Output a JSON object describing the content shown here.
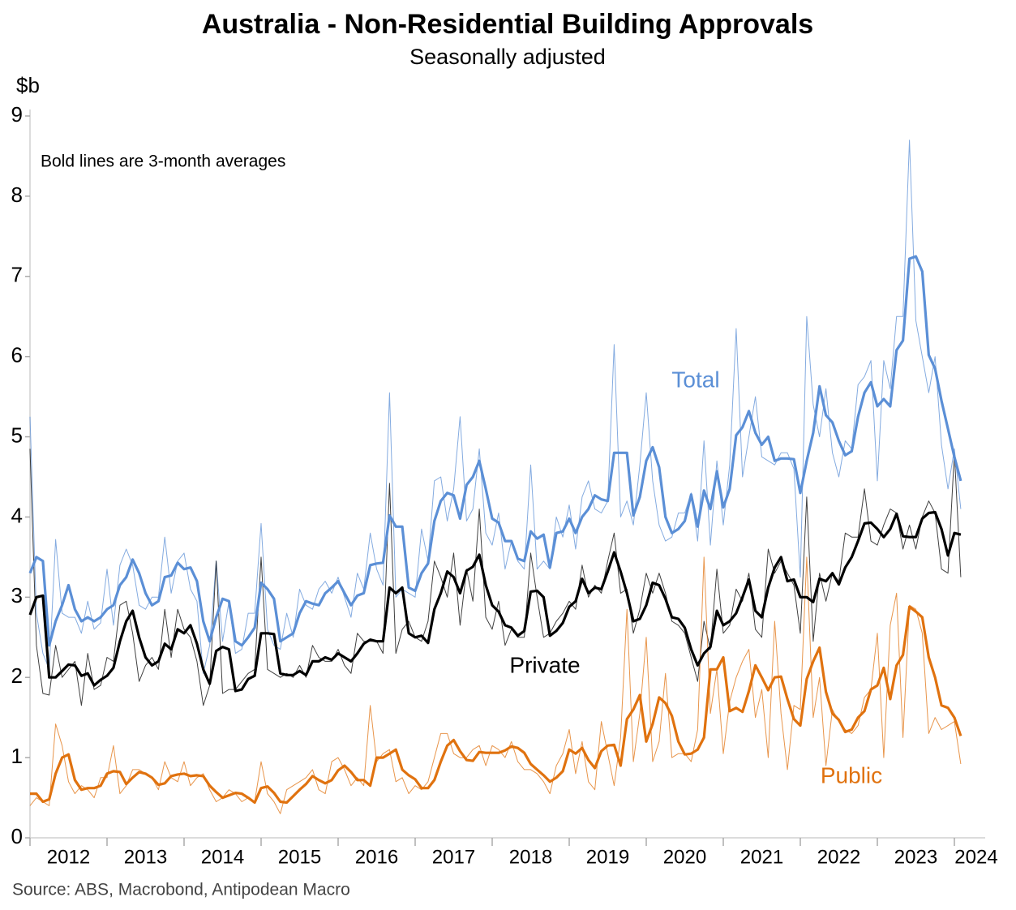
{
  "chart_data": {
    "type": "line",
    "title": "Australia - Non-Residential Building Approvals",
    "subtitle": "Seasonally adjusted",
    "y_label": "$b",
    "annotation": "Bold lines are 3-month averages",
    "source": "Source: ABS, Macrobond, Antipodean Macro",
    "xlim": [
      2012,
      2024.4
    ],
    "xticks": [
      2012,
      2013,
      2014,
      2015,
      2016,
      2017,
      2018,
      2019,
      2020,
      2021,
      2022,
      2023,
      2024
    ],
    "ylim": [
      0,
      9
    ],
    "yticks": [
      0,
      1,
      2,
      3,
      4,
      5,
      6,
      7,
      8,
      9
    ],
    "x": [
      2012.0,
      2012.083,
      2012.167,
      2012.25,
      2012.333,
      2012.417,
      2012.5,
      2012.583,
      2012.667,
      2012.75,
      2012.833,
      2012.917,
      2013.0,
      2013.083,
      2013.167,
      2013.25,
      2013.333,
      2013.417,
      2013.5,
      2013.583,
      2013.667,
      2013.75,
      2013.833,
      2013.917,
      2014.0,
      2014.083,
      2014.167,
      2014.25,
      2014.333,
      2014.417,
      2014.5,
      2014.583,
      2014.667,
      2014.75,
      2014.833,
      2014.917,
      2015.0,
      2015.083,
      2015.167,
      2015.25,
      2015.333,
      2015.417,
      2015.5,
      2015.583,
      2015.667,
      2015.75,
      2015.833,
      2015.917,
      2016.0,
      2016.083,
      2016.167,
      2016.25,
      2016.333,
      2016.417,
      2016.5,
      2016.583,
      2016.667,
      2016.75,
      2016.833,
      2016.917,
      2017.0,
      2017.083,
      2017.167,
      2017.25,
      2017.333,
      2017.417,
      2017.5,
      2017.583,
      2017.667,
      2017.75,
      2017.833,
      2017.917,
      2018.0,
      2018.083,
      2018.167,
      2018.25,
      2018.333,
      2018.417,
      2018.5,
      2018.583,
      2018.667,
      2018.75,
      2018.833,
      2018.917,
      2019.0,
      2019.083,
      2019.167,
      2019.25,
      2019.333,
      2019.417,
      2019.5,
      2019.583,
      2019.667,
      2019.75,
      2019.833,
      2019.917,
      2020.0,
      2020.083,
      2020.167,
      2020.25,
      2020.333,
      2020.417,
      2020.5,
      2020.583,
      2020.667,
      2020.75,
      2020.833,
      2020.917,
      2021.0,
      2021.083,
      2021.167,
      2021.25,
      2021.333,
      2021.417,
      2021.5,
      2021.583,
      2021.667,
      2021.75,
      2021.833,
      2021.917,
      2022.0,
      2022.083,
      2022.167,
      2022.25,
      2022.333,
      2022.417,
      2022.5,
      2022.583,
      2022.667,
      2022.75,
      2022.833,
      2022.917,
      2023.0,
      2023.083,
      2023.167,
      2023.25,
      2023.333,
      2023.417,
      2023.5,
      2023.583,
      2023.667,
      2023.75,
      2023.833,
      2023.917,
      2024.0,
      2024.083
    ],
    "series": [
      {
        "name": "Total",
        "color": "#5b8fd6",
        "values": [
          5.25,
          2.8,
          2.3,
          2.1,
          3.72,
          2.8,
          2.75,
          2.75,
          2.55,
          2.95,
          2.6,
          2.68,
          3.35,
          2.65,
          3.4,
          3.6,
          3.4,
          2.9,
          2.85,
          3.0,
          3.0,
          3.75,
          3.05,
          3.45,
          3.55,
          3.1,
          2.95,
          2.05,
          2.4,
          3.45,
          2.45,
          2.95,
          2.3,
          2.35,
          2.8,
          2.8,
          3.92,
          2.6,
          2.4,
          2.35,
          2.8,
          2.5,
          3.1,
          2.9,
          2.85,
          3.1,
          3.2,
          3.05,
          3.25,
          3.0,
          2.75,
          3.3,
          3.1,
          3.8,
          3.35,
          3.15,
          5.55,
          3.0,
          3.1,
          3.05,
          3.0,
          3.85,
          3.45,
          4.45,
          4.5,
          3.95,
          4.35,
          5.25,
          3.95,
          4.1,
          4.85,
          3.8,
          3.65,
          4.05,
          3.35,
          3.7,
          3.45,
          3.35,
          4.65,
          3.35,
          3.45,
          3.35,
          4.0,
          3.75,
          4.15,
          3.6,
          4.25,
          4.45,
          4.1,
          4.05,
          4.2,
          6.15,
          4.0,
          4.2,
          3.9,
          4.65,
          5.55,
          4.45,
          3.9,
          3.7,
          3.75,
          4.05,
          4.05,
          4.3,
          3.7,
          4.95,
          3.65,
          4.7,
          3.9,
          4.65,
          6.35,
          4.5,
          5.0,
          5.5,
          4.75,
          4.7,
          4.65,
          4.8,
          4.8,
          4.6,
          3.25,
          6.5,
          5.4,
          5.0,
          5.6,
          4.8,
          4.5,
          4.95,
          4.85,
          5.65,
          5.75,
          5.95,
          4.45,
          5.95,
          5.6,
          6.5,
          6.5,
          8.7,
          6.45,
          6.0,
          5.55,
          6.0,
          4.9,
          4.35,
          4.85,
          4.1
        ],
        "average_values": [
          3.3,
          3.5,
          3.45,
          2.4,
          2.7,
          2.9,
          3.15,
          2.85,
          2.7,
          2.75,
          2.7,
          2.75,
          2.85,
          2.9,
          3.15,
          3.25,
          3.47,
          3.3,
          3.05,
          2.9,
          2.95,
          3.25,
          3.27,
          3.43,
          3.35,
          3.37,
          3.2,
          2.7,
          2.45,
          2.75,
          2.98,
          2.95,
          2.45,
          2.4,
          2.5,
          2.62,
          3.18,
          3.1,
          2.98,
          2.45,
          2.5,
          2.55,
          2.8,
          2.95,
          2.92,
          2.9,
          3.05,
          3.12,
          3.2,
          3.05,
          2.9,
          3.02,
          3.05,
          3.4,
          3.42,
          3.43,
          4.02,
          3.88,
          3.88,
          3.12,
          3.08,
          3.3,
          3.42,
          3.95,
          4.2,
          4.3,
          4.27,
          3.98,
          4.4,
          4.5,
          4.7,
          4.35,
          3.98,
          3.93,
          3.7,
          3.7,
          3.48,
          3.45,
          3.82,
          3.73,
          3.78,
          3.37,
          3.8,
          3.82,
          3.98,
          3.8,
          4.0,
          4.1,
          4.27,
          4.22,
          4.2,
          4.8,
          4.8,
          4.8,
          4.02,
          4.25,
          4.7,
          4.87,
          4.62,
          4.0,
          3.8,
          3.85,
          3.95,
          4.28,
          3.88,
          4.33,
          4.1,
          4.57,
          4.12,
          4.35,
          5.02,
          5.12,
          5.32,
          5.05,
          4.9,
          5.0,
          4.7,
          4.73,
          4.73,
          4.72,
          4.3,
          4.7,
          5.05,
          5.63,
          5.27,
          5.18,
          4.95,
          4.77,
          4.82,
          5.25,
          5.55,
          5.68,
          5.38,
          5.47,
          5.38,
          6.08,
          6.2,
          7.22,
          7.25,
          7.06,
          6.02,
          5.85,
          5.45,
          5.1,
          4.75,
          4.45
        ]
      },
      {
        "name": "Private",
        "color": "#000000",
        "values": [
          4.85,
          2.4,
          1.8,
          1.78,
          2.4,
          2.0,
          2.1,
          2.2,
          1.65,
          2.3,
          1.85,
          1.9,
          2.25,
          2.2,
          2.9,
          2.95,
          2.55,
          1.95,
          2.15,
          2.25,
          2.1,
          2.85,
          2.25,
          2.85,
          2.6,
          2.5,
          2.2,
          1.65,
          1.9,
          3.45,
          1.8,
          1.85,
          1.85,
          1.95,
          2.05,
          2.1,
          3.5,
          2.1,
          2.05,
          2.0,
          2.05,
          2.0,
          2.15,
          2.0,
          2.4,
          2.25,
          2.2,
          2.2,
          2.35,
          2.15,
          2.05,
          2.55,
          2.45,
          2.45,
          2.45,
          2.3,
          4.42,
          2.3,
          2.6,
          2.7,
          2.5,
          2.45,
          2.7,
          3.45,
          3.25,
          3.0,
          3.55,
          2.65,
          3.35,
          2.95,
          4.1,
          2.75,
          2.6,
          2.95,
          2.4,
          2.6,
          2.5,
          2.5,
          3.55,
          3.0,
          2.5,
          2.55,
          2.7,
          2.8,
          2.95,
          2.85,
          3.4,
          3.0,
          3.15,
          3.05,
          3.45,
          3.8,
          3.05,
          3.1,
          2.55,
          2.85,
          3.3,
          3.05,
          3.3,
          3.05,
          2.7,
          2.65,
          2.55,
          2.25,
          1.95,
          2.7,
          2.35,
          3.35,
          2.55,
          2.65,
          3.1,
          2.95,
          3.3,
          2.6,
          2.5,
          3.6,
          3.3,
          3.45,
          3.3,
          3.15,
          2.55,
          4.25,
          2.45,
          3.3,
          2.95,
          3.3,
          3.2,
          3.8,
          3.75,
          3.75,
          4.35,
          3.7,
          3.65,
          3.9,
          4.1,
          4.05,
          3.6,
          3.9,
          3.6,
          4.0,
          4.2,
          4.05,
          3.35,
          3.3,
          4.8,
          3.25
        ],
        "average_values": [
          2.78,
          3.0,
          3.02,
          2.0,
          2.0,
          2.08,
          2.16,
          2.15,
          2.02,
          2.05,
          1.9,
          1.97,
          2.02,
          2.12,
          2.45,
          2.7,
          2.83,
          2.5,
          2.25,
          2.15,
          2.2,
          2.42,
          2.35,
          2.6,
          2.55,
          2.65,
          2.42,
          2.1,
          1.92,
          2.33,
          2.38,
          2.35,
          1.83,
          1.85,
          1.98,
          2.02,
          2.55,
          2.55,
          2.54,
          2.05,
          2.03,
          2.03,
          2.08,
          2.03,
          2.2,
          2.2,
          2.25,
          2.22,
          2.3,
          2.25,
          2.2,
          2.3,
          2.42,
          2.47,
          2.45,
          2.45,
          3.12,
          3.05,
          3.12,
          2.55,
          2.5,
          2.52,
          2.43,
          2.85,
          3.05,
          3.32,
          3.25,
          3.05,
          3.33,
          3.38,
          3.53,
          3.15,
          2.9,
          2.82,
          2.65,
          2.62,
          2.52,
          2.58,
          3.07,
          3.08,
          3.0,
          2.52,
          2.58,
          2.68,
          2.88,
          2.95,
          3.23,
          3.05,
          3.12,
          3.1,
          3.32,
          3.56,
          3.32,
          3.05,
          2.7,
          2.73,
          2.9,
          3.18,
          3.15,
          2.98,
          2.75,
          2.73,
          2.62,
          2.35,
          2.15,
          2.3,
          2.38,
          2.83,
          2.65,
          2.7,
          2.8,
          3.0,
          3.22,
          2.83,
          2.75,
          3.12,
          3.37,
          3.5,
          3.2,
          3.22,
          3.0,
          3.0,
          2.94,
          3.23,
          3.2,
          3.3,
          3.16,
          3.37,
          3.5,
          3.7,
          3.92,
          3.93,
          3.85,
          3.75,
          3.85,
          4.04,
          3.76,
          3.75,
          3.75,
          3.98,
          4.05,
          4.06,
          3.85,
          3.52,
          3.8,
          3.78
        ]
      },
      {
        "name": "Public",
        "color": "#e0720f",
        "values": [
          0.4,
          0.5,
          0.45,
          0.4,
          1.42,
          1.15,
          0.7,
          0.55,
          0.65,
          0.6,
          0.5,
          0.75,
          0.75,
          1.15,
          0.55,
          0.65,
          0.85,
          0.85,
          0.8,
          0.75,
          0.6,
          0.95,
          0.75,
          0.7,
          0.95,
          0.65,
          0.75,
          0.8,
          0.6,
          0.45,
          0.5,
          0.6,
          0.55,
          0.45,
          0.5,
          0.45,
          0.95,
          0.55,
          0.45,
          0.3,
          0.6,
          0.65,
          0.7,
          0.75,
          0.85,
          0.6,
          0.55,
          0.95,
          1.0,
          0.85,
          0.65,
          0.75,
          0.65,
          1.65,
          0.95,
          1.05,
          1.1,
          0.7,
          0.75,
          0.55,
          0.65,
          0.6,
          0.7,
          1.0,
          1.3,
          1.3,
          1.05,
          1.0,
          1.0,
          1.1,
          1.15,
          0.9,
          1.15,
          1.1,
          1.0,
          1.2,
          0.95,
          0.85,
          0.85,
          0.8,
          0.7,
          0.55,
          0.9,
          1.05,
          1.35,
          0.8,
          1.2,
          0.7,
          0.6,
          1.45,
          1.05,
          0.65,
          1.25,
          2.85,
          0.95,
          1.55,
          2.5,
          0.95,
          1.2,
          2.05,
          1.0,
          1.05,
          1.05,
          0.95,
          1.35,
          3.5,
          1.55,
          2.1,
          1.05,
          1.7,
          2.0,
          2.2,
          2.35,
          1.5,
          1.85,
          1.0,
          2.7,
          1.55,
          0.85,
          1.65,
          1.6,
          3.5,
          1.5,
          2.0,
          0.9,
          1.6,
          1.45,
          1.35,
          1.3,
          1.4,
          1.75,
          1.85,
          2.55,
          1.0,
          2.65,
          3.05,
          1.25,
          2.9,
          2.85,
          2.55,
          1.3,
          1.5,
          1.35,
          1.4,
          1.45,
          0.92
        ],
        "average_values": [
          0.55,
          0.55,
          0.45,
          0.48,
          0.8,
          1.0,
          1.04,
          0.72,
          0.6,
          0.62,
          0.62,
          0.65,
          0.8,
          0.83,
          0.82,
          0.67,
          0.75,
          0.82,
          0.8,
          0.75,
          0.66,
          0.68,
          0.77,
          0.79,
          0.8,
          0.77,
          0.78,
          0.77,
          0.65,
          0.57,
          0.5,
          0.53,
          0.56,
          0.55,
          0.5,
          0.44,
          0.62,
          0.64,
          0.56,
          0.45,
          0.44,
          0.52,
          0.6,
          0.67,
          0.77,
          0.72,
          0.68,
          0.72,
          0.84,
          0.9,
          0.82,
          0.72,
          0.72,
          0.65,
          1.0,
          1.0,
          1.05,
          1.1,
          0.85,
          0.78,
          0.73,
          0.62,
          0.62,
          0.72,
          0.95,
          1.15,
          1.22,
          1.08,
          0.97,
          0.96,
          1.07,
          1.06,
          1.06,
          1.06,
          1.09,
          1.14,
          1.12,
          1.06,
          0.92,
          0.85,
          0.78,
          0.7,
          0.75,
          0.83,
          1.1,
          1.05,
          1.12,
          0.97,
          0.87,
          1.08,
          1.15,
          1.16,
          0.9,
          1.48,
          1.6,
          1.78,
          1.2,
          1.42,
          1.75,
          1.68,
          1.52,
          1.2,
          1.04,
          1.05,
          1.1,
          1.25,
          2.1,
          2.1,
          2.25,
          1.58,
          1.62,
          1.57,
          1.83,
          2.15,
          2.0,
          1.84,
          2.0,
          2.01,
          1.73,
          1.48,
          1.4,
          1.98,
          2.2,
          2.37,
          1.82,
          1.55,
          1.47,
          1.32,
          1.35,
          1.5,
          1.58,
          1.85,
          1.9,
          2.12,
          1.73,
          2.15,
          2.28,
          2.88,
          2.82,
          2.75,
          2.25,
          2.0,
          1.65,
          1.62,
          1.5,
          1.27
        ]
      }
    ]
  }
}
